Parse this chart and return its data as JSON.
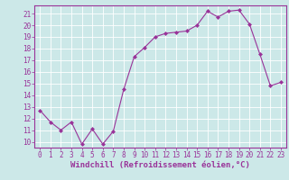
{
  "x": [
    0,
    1,
    2,
    3,
    4,
    5,
    6,
    7,
    8,
    9,
    10,
    11,
    12,
    13,
    14,
    15,
    16,
    17,
    18,
    19,
    20,
    21,
    22,
    23
  ],
  "y": [
    12.7,
    11.7,
    11.0,
    11.7,
    9.8,
    11.1,
    9.8,
    10.9,
    14.5,
    17.3,
    18.1,
    19.0,
    19.3,
    19.4,
    19.5,
    20.0,
    21.2,
    20.7,
    21.2,
    21.3,
    20.1,
    17.5,
    14.8,
    15.1
  ],
  "line_color": "#993399",
  "marker": "D",
  "marker_size": 2,
  "xlabel": "Windchill (Refroidissement éolien,°C)",
  "ylim": [
    9.5,
    21.7
  ],
  "xlim": [
    -0.5,
    23.5
  ],
  "yticks": [
    10,
    11,
    12,
    13,
    14,
    15,
    16,
    17,
    18,
    19,
    20,
    21
  ],
  "xticks": [
    0,
    1,
    2,
    3,
    4,
    5,
    6,
    7,
    8,
    9,
    10,
    11,
    12,
    13,
    14,
    15,
    16,
    17,
    18,
    19,
    20,
    21,
    22,
    23
  ],
  "bg_color": "#cce8e8",
  "grid_color": "#ffffff",
  "font_color": "#993399",
  "font_size": 5.5,
  "xlabel_size": 6.5
}
